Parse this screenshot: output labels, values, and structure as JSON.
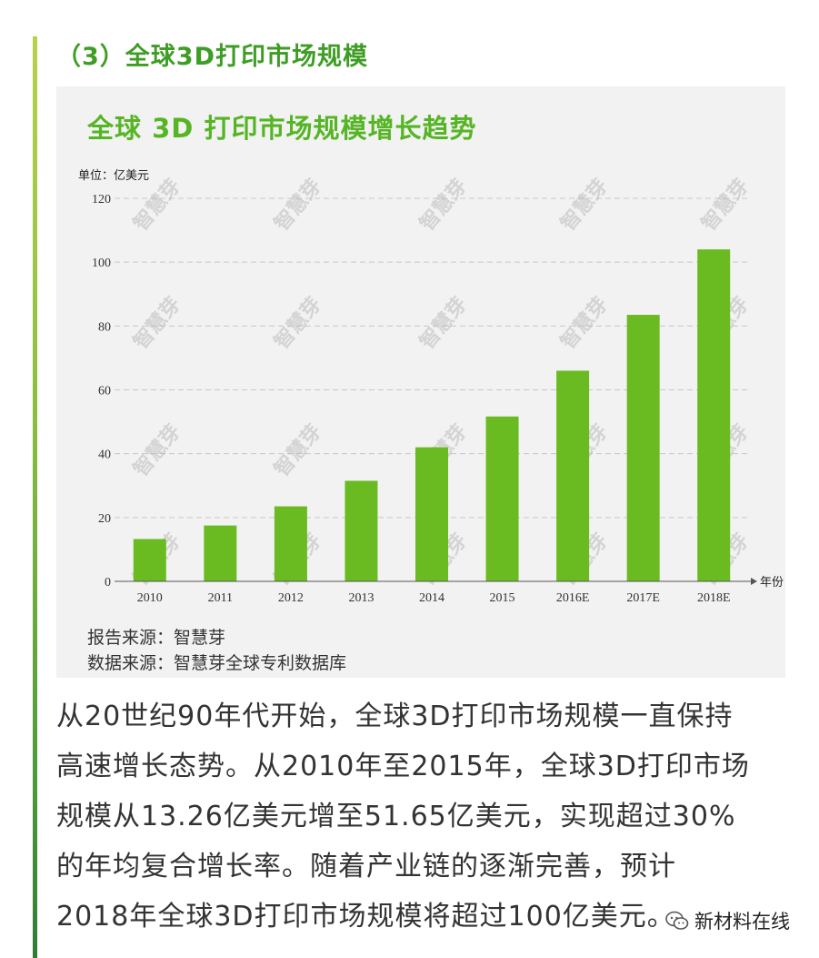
{
  "section_heading": "（3）全球3D打印市场规模",
  "watermark_text": "智慧芽",
  "chart_data": {
    "type": "bar",
    "title": "全球 3D 打印市场规模增长趋势",
    "unit_label": "单位：亿美元",
    "xlabel": "年份",
    "ylabel": "",
    "categories": [
      "2010",
      "2011",
      "2012",
      "2013",
      "2014",
      "2015",
      "2016E",
      "2017E",
      "2018E"
    ],
    "values": [
      13.26,
      17.5,
      23.5,
      31.5,
      42,
      51.65,
      66,
      83.5,
      104
    ],
    "ylim": [
      0,
      120
    ],
    "yticks": [
      "0",
      "20",
      "40",
      "60",
      "80",
      "100",
      "120"
    ],
    "bar_color": "#6abb22",
    "grid": true,
    "grid_style": "dashed"
  },
  "sources": [
    "报告来源：智慧芽",
    "数据来源：智慧芽全球专利数据库"
  ],
  "body_lines": [
    "从20世纪90年代开始，全球3D打印市场规模一直保持",
    "高速增长态势。从2010年至2015年，全球3D打印市场",
    "规模从13.26亿美元增至51.65亿美元，实现超过30%",
    "的年均复合增长率。随着产业链的逐渐完善，预计",
    "2018年全球3D打印市场规模将超过100亿美元。"
  ],
  "badge": {
    "icon": "wechat-icon",
    "label": "新材料在线"
  },
  "colors": {
    "heading": "#3e9d24",
    "title": "#56b524",
    "bar": "#6abb22",
    "panel": "#f2f2f2"
  }
}
